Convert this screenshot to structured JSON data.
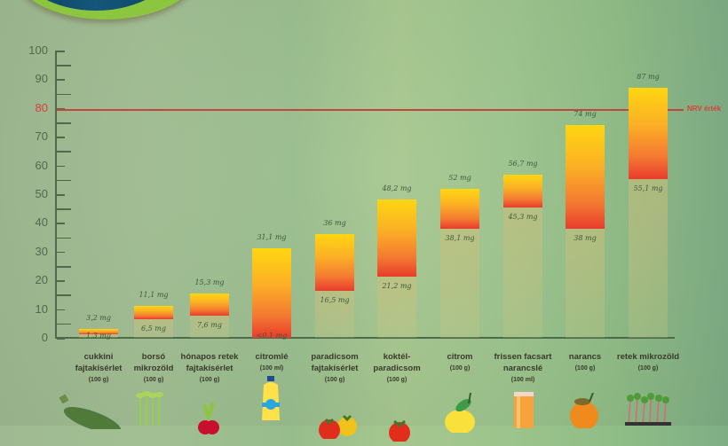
{
  "chart_data": {
    "type": "bar",
    "subtype": "floating-range",
    "title": "",
    "xlabel": "",
    "ylabel": "mg",
    "ylim": [
      0,
      100
    ],
    "yticks": [
      0,
      10,
      20,
      30,
      40,
      50,
      60,
      70,
      80,
      90,
      100
    ],
    "reference_line": {
      "value": 80,
      "label": "NRV érték",
      "color": "#d8403a"
    },
    "categories": [
      "cukkini fajtakísérlet",
      "borsó mikrozöld",
      "hónapos retek fajtakísérlet",
      "citromlé",
      "paradicsom fajtakísérlet",
      "koktélparadicsom",
      "citrom",
      "frissen facsart narancslé",
      "narancs",
      "retek mikrozöld"
    ],
    "units": [
      "(100 g)",
      "(100 g)",
      "(100 g)",
      "(100 ml)",
      "(100 g)",
      "(100 g)",
      "(100 g)",
      "(100 ml)",
      "(100 g)",
      "(100 g)"
    ],
    "series": [
      {
        "name": "min",
        "values": [
          1.3,
          6.5,
          7.6,
          0.1,
          16.5,
          21.2,
          38.1,
          45.3,
          38,
          55.1
        ]
      },
      {
        "name": "max",
        "values": [
          3.2,
          11.1,
          15.3,
          31.1,
          36,
          48.2,
          52,
          56.7,
          74,
          87
        ]
      }
    ],
    "min_labels": [
      "1,3 mg",
      "6,5 mg",
      "7,6 mg",
      "<0,1 mg",
      "16,5 mg",
      "21,2 mg",
      "38,1 mg",
      "45,3 mg",
      "38 mg",
      "55,1 mg"
    ],
    "max_labels": [
      "3,2 mg",
      "11,1 mg",
      "15,3 mg",
      "31,1 mg",
      "36 mg",
      "48,2 mg",
      "52 mg",
      "56,7 mg",
      "74 mg",
      "87 mg"
    ],
    "colors": {
      "bar_top": "#ffd612",
      "bar_bottom": "#e83c2c",
      "axis": "#4d6b4b"
    }
  },
  "axis": {
    "labels": [
      "0",
      "10",
      "20",
      "30",
      "40",
      "50",
      "60",
      "70",
      "80",
      "90",
      "100"
    ]
  },
  "nrv": {
    "label": "NRV érték"
  },
  "items": [
    {
      "name_l1": "cukkini",
      "name_l2": "fajtakísérlet",
      "unit": "(100 g)",
      "max": "3,2 mg",
      "min": "1,3 mg",
      "icon": "zucchini-icon"
    },
    {
      "name_l1": "borsó",
      "name_l2": "mikrozöld",
      "unit": "(100 g)",
      "max": "11,1 mg",
      "min": "6,5 mg",
      "icon": "pea-sprouts-icon"
    },
    {
      "name_l1": "hónapos retek",
      "name_l2": "fajtakísérlet",
      "unit": "(100 g)",
      "max": "15,3 mg",
      "min": "7,6 mg",
      "icon": "radish-icon"
    },
    {
      "name_l1": "citromlé",
      "name_l2": "",
      "unit": "(100 ml)",
      "max": "31,1 mg",
      "min": "<0,1 mg",
      "icon": "lemon-juice-bottle-icon"
    },
    {
      "name_l1": "paradicsom",
      "name_l2": "fajtakísérlet",
      "unit": "(100 g)",
      "max": "36 mg",
      "min": "16,5 mg",
      "icon": "tomatoes-icon"
    },
    {
      "name_l1": "koktél-",
      "name_l2": "paradicsom",
      "unit": "(100 g)",
      "max": "48,2 mg",
      "min": "21,2 mg",
      "icon": "cherry-tomato-icon"
    },
    {
      "name_l1": "citrom",
      "name_l2": "",
      "unit": "(100 g)",
      "max": "52 mg",
      "min": "38,1 mg",
      "icon": "lemon-icon"
    },
    {
      "name_l1": "frissen facsart",
      "name_l2": "narancslé",
      "unit": "(100 ml)",
      "max": "56,7 mg",
      "min": "45,3 mg",
      "icon": "orange-juice-glass-icon"
    },
    {
      "name_l1": "narancs",
      "name_l2": "",
      "unit": "(100 g)",
      "max": "74 mg",
      "min": "38 mg",
      "icon": "orange-icon"
    },
    {
      "name_l1": "retek mikrozöld",
      "name_l2": "",
      "unit": "(100 g)",
      "max": "87 mg",
      "min": "55,1 mg",
      "icon": "radish-microgreens-icon"
    }
  ]
}
